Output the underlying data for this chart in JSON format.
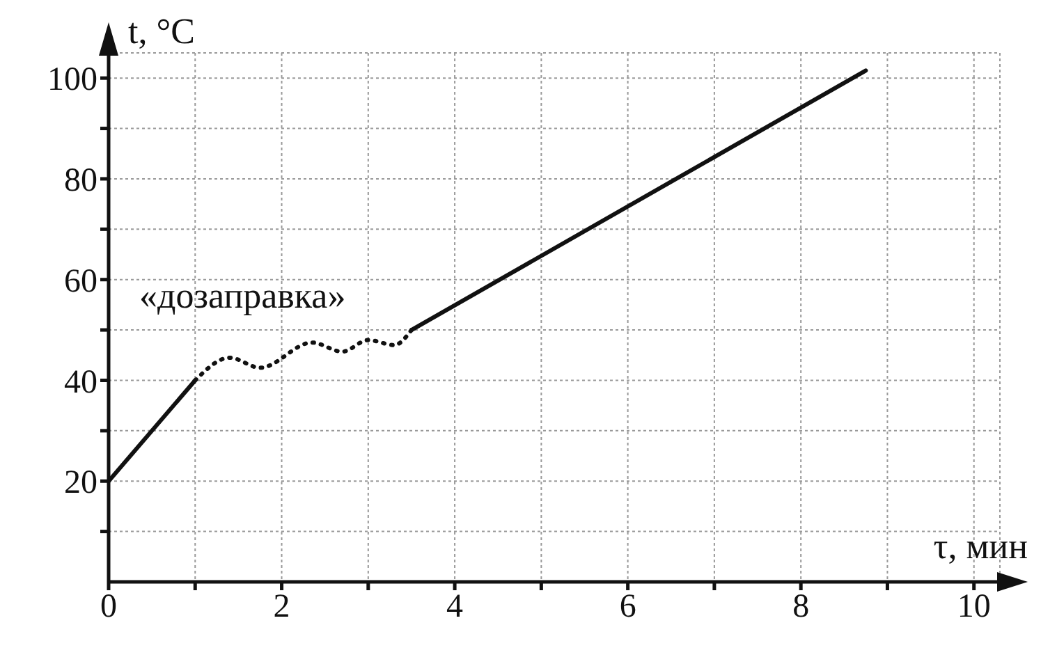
{
  "chart_data": {
    "type": "line",
    "xlabel": "τ, мин",
    "ylabel": "t, °C",
    "annotations": [
      "«дозаправка»"
    ],
    "series": [
      {
        "color": "#111111",
        "line_style": "solid",
        "x": [
          0,
          1
        ],
        "values": [
          20,
          40
        ]
      },
      {
        "color": "#111111",
        "line_style": "dotted",
        "x": [
          1,
          1.4,
          1.75,
          2.35,
          2.7,
          3.0,
          3.3,
          3.5
        ],
        "values": [
          40,
          44.5,
          42.5,
          47.5,
          45.7,
          48,
          47,
          50
        ]
      },
      {
        "color": "#111111",
        "line_style": "solid",
        "x": [
          3.5,
          8.75
        ],
        "values": [
          50,
          101.5
        ]
      }
    ],
    "xlim": [
      0,
      10.3
    ],
    "ylim": [
      0,
      105
    ],
    "xticks": [
      0,
      {
        "value": 1,
        "label": null
      },
      2,
      {
        "value": 3,
        "label": null
      },
      4,
      {
        "value": 5,
        "label": null
      },
      6,
      {
        "value": 7,
        "label": null
      },
      8,
      {
        "value": 9,
        "label": null
      },
      10
    ],
    "yticks": [
      {
        "value": 10,
        "label": null
      },
      20,
      {
        "value": 30,
        "label": null
      },
      40,
      {
        "value": 50,
        "label": null
      },
      60,
      {
        "value": 70,
        "label": null
      },
      80,
      {
        "value": 90,
        "label": null
      },
      100
    ],
    "grid": true,
    "marker": "none"
  }
}
